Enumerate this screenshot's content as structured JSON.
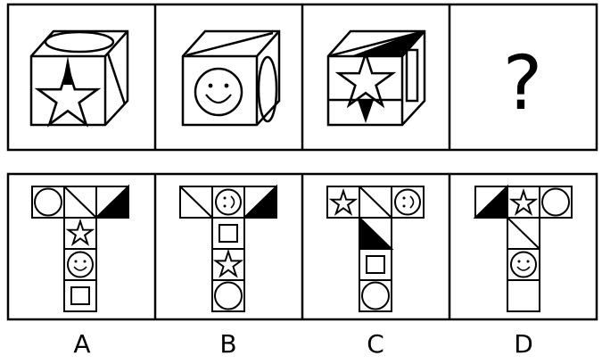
{
  "question_mark": "?",
  "options": [
    {
      "label": "A"
    },
    {
      "label": "B"
    },
    {
      "label": "C"
    },
    {
      "label": "D"
    }
  ],
  "icons": {
    "cube_1": "cube-star-ellipse-icon",
    "cube_2": "cube-smiley-ellipse-icon",
    "cube_3": "cube-star-black-triangle-icon",
    "unfolded_net": "t-shaped-net-icon"
  },
  "colors": {
    "stroke": "#000000",
    "fill_dark": "#000000",
    "background": "#ffffff"
  }
}
